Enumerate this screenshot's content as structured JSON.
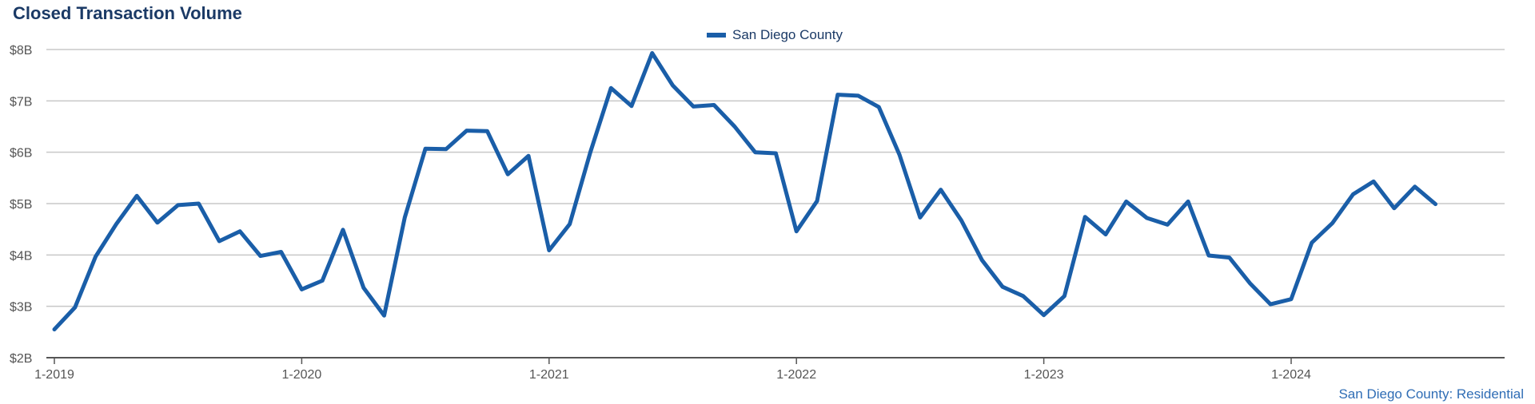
{
  "header": {
    "title": "Closed Transaction Volume"
  },
  "footer": {
    "source": "San Diego County: Residential"
  },
  "colors": {
    "series": "#1a5ea8",
    "grid": "#c8c8c8",
    "axis": "#555555",
    "title": "#1b3a66"
  },
  "chart_data": {
    "type": "line",
    "title": "Closed Transaction Volume",
    "xlabel": "",
    "ylabel": "",
    "ylim": [
      2,
      8
    ],
    "yticks": [
      2,
      3,
      4,
      5,
      6,
      7,
      8
    ],
    "ytick_labels": [
      "$2B",
      "$3B",
      "$4B",
      "$5B",
      "$6B",
      "$7B",
      "$8B"
    ],
    "xtick_labels": [
      "1-2019",
      "1-2020",
      "1-2021",
      "1-2022",
      "1-2023",
      "1-2024"
    ],
    "xtick_index": [
      0,
      12,
      24,
      36,
      48,
      60
    ],
    "grid": true,
    "legend_position": "top-center",
    "series": [
      {
        "name": "San Diego County",
        "values": [
          2.55,
          2.98,
          3.97,
          4.6,
          5.15,
          4.63,
          4.97,
          5.0,
          4.27,
          4.46,
          3.98,
          4.06,
          3.33,
          3.5,
          4.49,
          3.36,
          2.82,
          4.73,
          6.07,
          6.06,
          6.42,
          6.41,
          5.57,
          5.93,
          4.09,
          4.6,
          6.0,
          7.25,
          6.9,
          7.93,
          7.3,
          6.89,
          6.92,
          6.5,
          6.0,
          5.98,
          4.46,
          5.05,
          7.12,
          7.1,
          6.88,
          5.95,
          4.73,
          5.27,
          4.67,
          3.9,
          3.38,
          3.2,
          2.83,
          3.2,
          4.74,
          4.4,
          5.04,
          4.72,
          4.59,
          5.04,
          3.99,
          3.95,
          3.45,
          3.04,
          3.14,
          4.24,
          4.62,
          5.18,
          5.43,
          4.91,
          5.33,
          4.99
        ]
      }
    ]
  }
}
